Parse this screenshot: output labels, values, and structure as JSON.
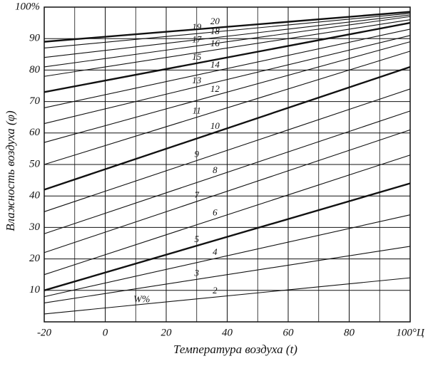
{
  "chart_data": {
    "type": "line",
    "x_label": "Температура воздуха (t)",
    "y_label": "Влажность воздуха (φ)",
    "annotation": "W%",
    "x": [
      -20,
      100
    ],
    "xlim": [
      -20,
      100
    ],
    "xticks": [
      -20,
      0,
      20,
      40,
      60,
      80,
      {
        "value": 100,
        "label": "100°Ц"
      }
    ],
    "ylim": [
      0,
      100
    ],
    "yticks": [
      10,
      20,
      30,
      40,
      50,
      60,
      70,
      80,
      90,
      {
        "value": 100,
        "label": "100%"
      }
    ],
    "grid": true,
    "color": "#111111",
    "series": [
      {
        "name": "2",
        "values": [
          2.5,
          14
        ]
      },
      {
        "name": "3",
        "values": [
          6,
          24
        ]
      },
      {
        "name": "4",
        "values": [
          8,
          34
        ]
      },
      {
        "name": "5",
        "values": [
          10,
          44
        ]
      },
      {
        "name": "6",
        "values": [
          15,
          53
        ]
      },
      {
        "name": "7",
        "values": [
          22,
          61
        ]
      },
      {
        "name": "8",
        "values": [
          28,
          67
        ]
      },
      {
        "name": "9",
        "values": [
          35,
          74
        ]
      },
      {
        "name": "10",
        "values": [
          42,
          81
        ]
      },
      {
        "name": "11",
        "values": [
          50,
          86
        ]
      },
      {
        "name": "12",
        "values": [
          57,
          89
        ]
      },
      {
        "name": "13",
        "values": [
          63,
          91
        ]
      },
      {
        "name": "14",
        "values": [
          68,
          93
        ]
      },
      {
        "name": "15",
        "values": [
          73,
          95
        ]
      },
      {
        "name": "16",
        "values": [
          78,
          96
        ]
      },
      {
        "name": "17",
        "values": [
          81,
          97
        ]
      },
      {
        "name": "18",
        "values": [
          84,
          97.5
        ]
      },
      {
        "name": "19",
        "values": [
          87,
          98
        ]
      },
      {
        "name": "20",
        "values": [
          89,
          98.5
        ]
      }
    ]
  }
}
